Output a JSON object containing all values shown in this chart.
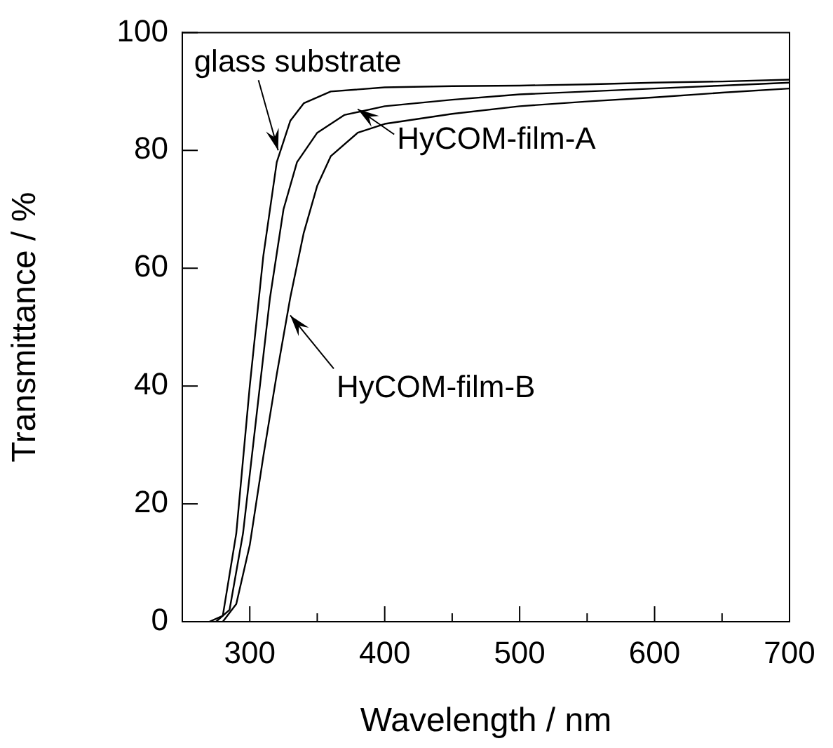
{
  "chart_data": {
    "type": "line",
    "xlabel": "Wavelength / nm",
    "ylabel": "Transmittance / %",
    "xlim": [
      250,
      700
    ],
    "ylim": [
      0,
      100
    ],
    "xticks": [
      {
        "value": 250,
        "label": null
      },
      300,
      {
        "value": 350,
        "label": null
      },
      400,
      {
        "value": 450,
        "label": null
      },
      500,
      {
        "value": 550,
        "label": null
      },
      600,
      {
        "value": 650,
        "label": null
      },
      700
    ],
    "yticks": [
      0,
      20,
      40,
      60,
      80,
      100
    ],
    "grid": false,
    "legend": false,
    "marker": "none",
    "line_style": "solid",
    "series": [
      {
        "color": "#000000",
        "x": [
          270,
          280,
          290,
          300,
          310,
          320,
          330,
          340,
          360,
          400,
          450,
          500,
          550,
          600,
          650,
          700
        ],
        "values": [
          0,
          1,
          15,
          40,
          62,
          78,
          85,
          88,
          90,
          90.7,
          90.9,
          91,
          91.2,
          91.5,
          91.7,
          92
        ]
      },
      {
        "color": "#000000",
        "x": [
          275,
          285,
          295,
          305,
          315,
          325,
          335,
          350,
          370,
          400,
          450,
          500,
          550,
          600,
          650,
          700
        ],
        "values": [
          0,
          2,
          15,
          35,
          55,
          70,
          78,
          83,
          86,
          87.5,
          88.6,
          89.5,
          90,
          90.5,
          91,
          91.5
        ]
      },
      {
        "color": "#000000",
        "x": [
          280,
          290,
          300,
          310,
          320,
          330,
          340,
          350,
          360,
          380,
          400,
          450,
          500,
          550,
          600,
          650,
          700
        ],
        "values": [
          0,
          3,
          13,
          28,
          42,
          55,
          66,
          74,
          79,
          83,
          84.5,
          86.2,
          87.5,
          88.3,
          89,
          89.8,
          90.5
        ]
      }
    ],
    "annotations": [
      {
        "text": "glass substrate",
        "x": 321,
        "y": 80
      },
      {
        "text": "HyCOM-film-A",
        "x": 380,
        "y": 87
      },
      {
        "text": "HyCOM-film-B",
        "x": 330,
        "y": 52
      }
    ]
  }
}
